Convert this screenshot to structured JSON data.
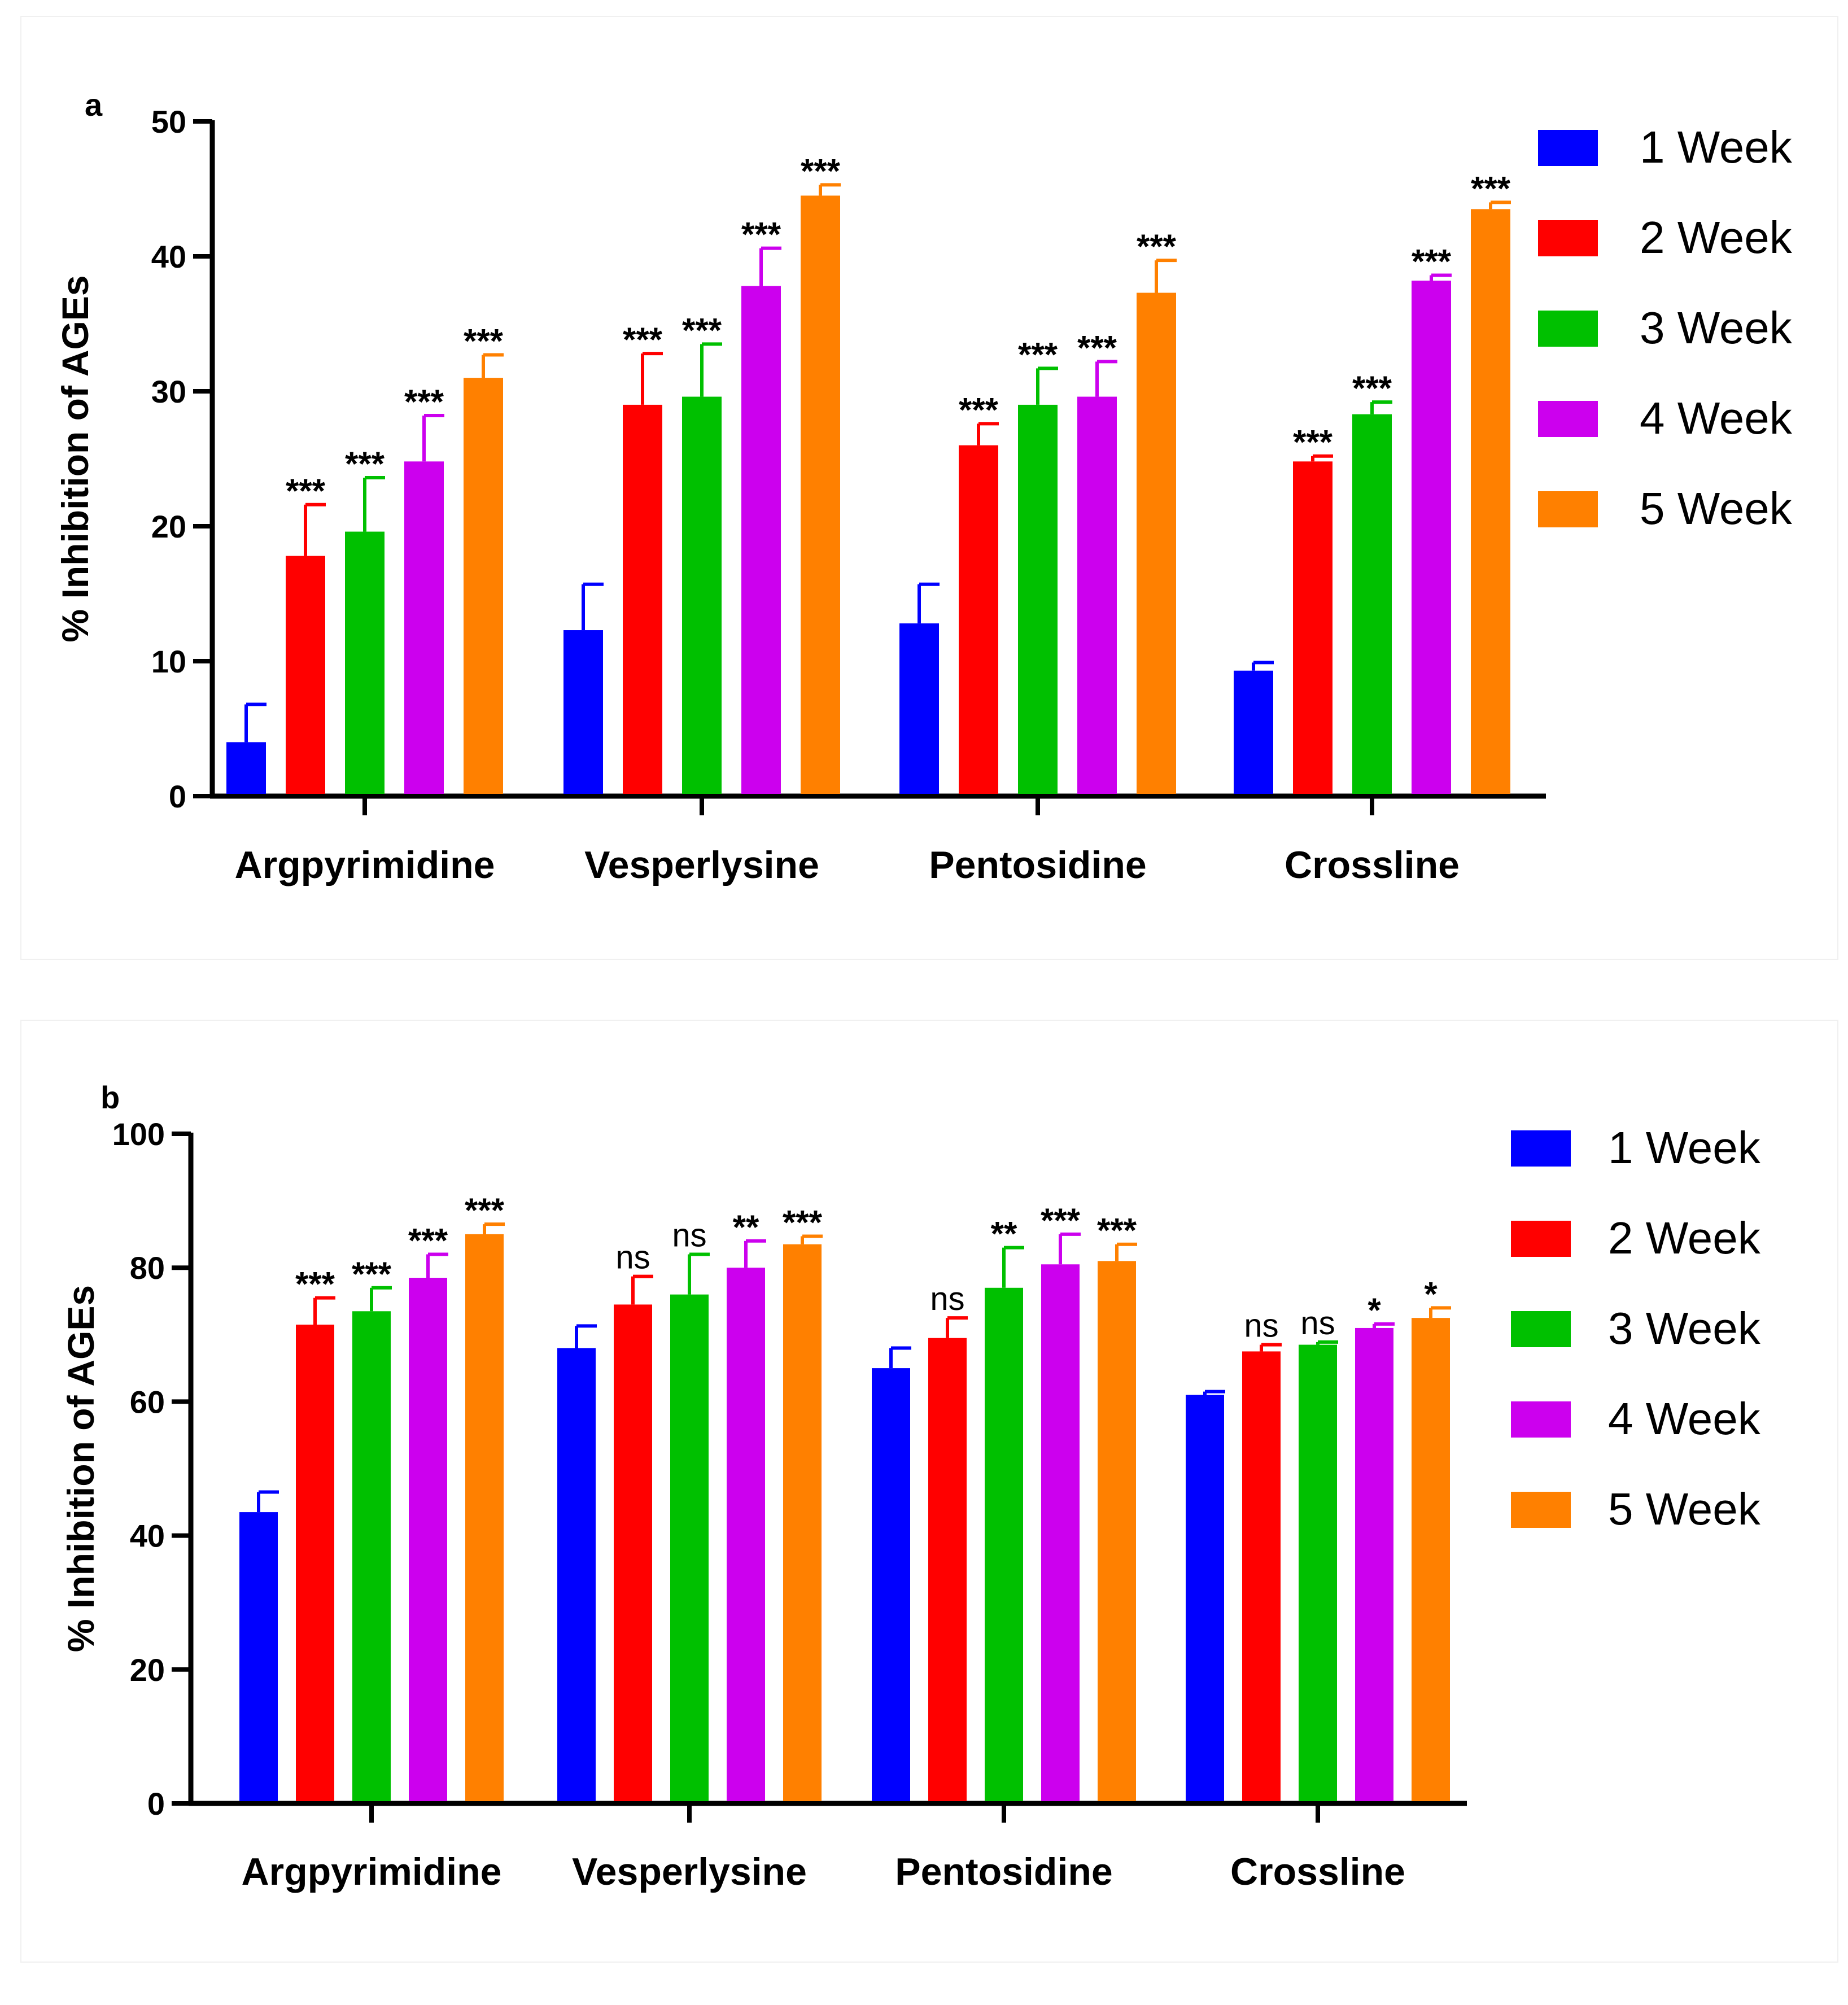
{
  "chart_data": [
    {
      "type": "bar",
      "panel_label": "a",
      "ylabel": "% Inhibition of AGEs",
      "xlabel": "",
      "ylim": [
        0,
        50
      ],
      "yticks": [
        0,
        10,
        20,
        30,
        40,
        50
      ],
      "categories": [
        "Argpyrimidine",
        "Vesperlysine",
        "Pentosidine",
        "Crossline"
      ],
      "legend_position": "right",
      "series": [
        {
          "name": "1 Week",
          "color": "#0000ff",
          "values": [
            4.0,
            12.3,
            12.8,
            9.3
          ],
          "errors": [
            2.8,
            3.4,
            2.9,
            0.6
          ],
          "annotations": [
            "",
            "",
            "",
            ""
          ]
        },
        {
          "name": "2 Week",
          "color": "#ff0000",
          "values": [
            17.8,
            29.0,
            26.0,
            24.8
          ],
          "errors": [
            3.8,
            3.8,
            1.6,
            0.4
          ],
          "annotations": [
            "***",
            "***",
            "***",
            "***"
          ]
        },
        {
          "name": "3 Week",
          "color": "#00c000",
          "values": [
            19.6,
            29.6,
            29.0,
            28.3
          ],
          "errors": [
            4.0,
            3.9,
            2.7,
            0.9
          ],
          "annotations": [
            "***",
            "***",
            "***",
            "***"
          ]
        },
        {
          "name": "4 Week",
          "color": "#cc00ee",
          "values": [
            24.8,
            37.8,
            29.6,
            38.2
          ],
          "errors": [
            3.4,
            2.8,
            2.6,
            0.4
          ],
          "annotations": [
            "***",
            "***",
            "***",
            "***"
          ]
        },
        {
          "name": "5 Week",
          "color": "#ff8000",
          "values": [
            31.0,
            44.5,
            37.3,
            43.5
          ],
          "errors": [
            1.7,
            0.8,
            2.4,
            0.5
          ],
          "annotations": [
            "***",
            "***",
            "***",
            "***"
          ]
        }
      ]
    },
    {
      "type": "bar",
      "panel_label": "b",
      "ylabel": "% Inhibition of AGEs",
      "xlabel": "",
      "ylim": [
        0,
        100
      ],
      "yticks": [
        0,
        20,
        40,
        60,
        80,
        100
      ],
      "categories": [
        "Argpyrimidine",
        "Vesperlysine",
        "Pentosidine",
        "Crossline"
      ],
      "legend_position": "right",
      "series": [
        {
          "name": "1 Week",
          "color": "#0000ff",
          "values": [
            43.5,
            68.0,
            65.0,
            61.0
          ],
          "errors": [
            3.0,
            3.3,
            3.0,
            0.5
          ],
          "annotations": [
            "",
            "",
            "",
            ""
          ]
        },
        {
          "name": "2 Week",
          "color": "#ff0000",
          "values": [
            71.5,
            74.5,
            69.5,
            67.5
          ],
          "errors": [
            4.0,
            4.2,
            3.0,
            1.0
          ],
          "annotations": [
            "***",
            "ns",
            "ns",
            "ns"
          ]
        },
        {
          "name": "3 Week",
          "color": "#00c000",
          "values": [
            73.5,
            76.0,
            77.0,
            68.5
          ],
          "errors": [
            3.5,
            6.0,
            6.0,
            0.4
          ],
          "annotations": [
            "***",
            "ns",
            "**",
            "ns"
          ]
        },
        {
          "name": "4 Week",
          "color": "#cc00ee",
          "values": [
            78.5,
            80.0,
            80.5,
            71.0
          ],
          "errors": [
            3.5,
            4.0,
            4.5,
            0.6
          ],
          "annotations": [
            "***",
            "**",
            "***",
            "*"
          ]
        },
        {
          "name": "5 Week",
          "color": "#ff8000",
          "values": [
            85.0,
            83.5,
            81.0,
            72.5
          ],
          "errors": [
            1.5,
            1.2,
            2.5,
            1.5
          ],
          "annotations": [
            "***",
            "***",
            "***",
            "*"
          ]
        }
      ]
    }
  ]
}
